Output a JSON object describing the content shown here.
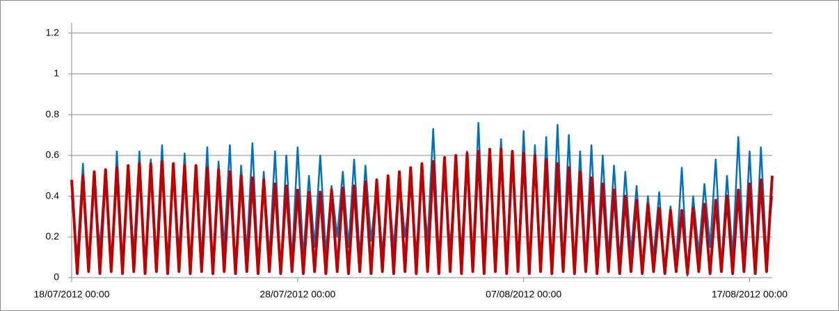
{
  "chart_data": {
    "type": "line",
    "x": [
      "18/07/2012 00:00",
      "18/07/2012 06:00",
      "18/07/2012 12:00",
      "18/07/2012 18:00",
      "19/07/2012 00:00",
      "19/07/2012 06:00",
      "19/07/2012 12:00",
      "19/07/2012 18:00",
      "20/07/2012 00:00",
      "20/07/2012 06:00",
      "20/07/2012 12:00",
      "20/07/2012 18:00",
      "21/07/2012 00:00",
      "21/07/2012 06:00",
      "21/07/2012 12:00",
      "21/07/2012 18:00",
      "22/07/2012 00:00",
      "22/07/2012 06:00",
      "22/07/2012 12:00",
      "22/07/2012 18:00",
      "23/07/2012 00:00",
      "23/07/2012 06:00",
      "23/07/2012 12:00",
      "23/07/2012 18:00",
      "24/07/2012 00:00",
      "24/07/2012 06:00",
      "24/07/2012 12:00",
      "24/07/2012 18:00",
      "25/07/2012 00:00",
      "25/07/2012 06:00",
      "25/07/2012 12:00",
      "25/07/2012 18:00",
      "26/07/2012 00:00",
      "26/07/2012 06:00",
      "26/07/2012 12:00",
      "26/07/2012 18:00",
      "27/07/2012 00:00",
      "27/07/2012 06:00",
      "27/07/2012 12:00",
      "27/07/2012 18:00",
      "28/07/2012 00:00",
      "28/07/2012 06:00",
      "28/07/2012 12:00",
      "28/07/2012 18:00",
      "29/07/2012 00:00",
      "29/07/2012 06:00",
      "29/07/2012 12:00",
      "29/07/2012 18:00",
      "30/07/2012 00:00",
      "30/07/2012 06:00",
      "30/07/2012 12:00",
      "30/07/2012 18:00",
      "31/07/2012 00:00",
      "31/07/2012 06:00",
      "31/07/2012 12:00",
      "31/07/2012 18:00",
      "01/08/2012 00:00",
      "01/08/2012 06:00",
      "01/08/2012 12:00",
      "01/08/2012 18:00",
      "02/08/2012 00:00",
      "02/08/2012 06:00",
      "02/08/2012 12:00",
      "02/08/2012 18:00",
      "03/08/2012 00:00",
      "03/08/2012 06:00",
      "03/08/2012 12:00",
      "03/08/2012 18:00",
      "04/08/2012 00:00",
      "04/08/2012 06:00",
      "04/08/2012 12:00",
      "04/08/2012 18:00",
      "05/08/2012 00:00",
      "05/08/2012 06:00",
      "05/08/2012 12:00",
      "05/08/2012 18:00",
      "06/08/2012 00:00",
      "06/08/2012 06:00",
      "06/08/2012 12:00",
      "06/08/2012 18:00",
      "07/08/2012 00:00",
      "07/08/2012 06:00",
      "07/08/2012 12:00",
      "07/08/2012 18:00",
      "08/08/2012 00:00",
      "08/08/2012 06:00",
      "08/08/2012 12:00",
      "08/08/2012 18:00",
      "09/08/2012 00:00",
      "09/08/2012 06:00",
      "09/08/2012 12:00",
      "09/08/2012 18:00",
      "10/08/2012 00:00",
      "10/08/2012 06:00",
      "10/08/2012 12:00",
      "10/08/2012 18:00",
      "11/08/2012 00:00",
      "11/08/2012 06:00",
      "11/08/2012 12:00",
      "11/08/2012 18:00",
      "12/08/2012 00:00",
      "12/08/2012 06:00",
      "12/08/2012 12:00",
      "12/08/2012 18:00",
      "13/08/2012 00:00",
      "13/08/2012 06:00",
      "13/08/2012 12:00",
      "13/08/2012 18:00",
      "14/08/2012 00:00",
      "14/08/2012 06:00",
      "14/08/2012 12:00",
      "14/08/2012 18:00",
      "15/08/2012 00:00",
      "15/08/2012 06:00",
      "15/08/2012 12:00",
      "15/08/2012 18:00",
      "16/08/2012 00:00",
      "16/08/2012 06:00",
      "16/08/2012 12:00",
      "16/08/2012 18:00",
      "17/08/2012 00:00",
      "17/08/2012 06:00",
      "17/08/2012 12:00",
      "17/08/2012 18:00",
      "18/08/2012 00:00"
    ],
    "series": [
      {
        "color": "#0070c0",
        "values": [
          0.4,
          0.1,
          0.56,
          0.05,
          0.45,
          0.15,
          0.53,
          0.04,
          0.62,
          0.08,
          0.5,
          0.12,
          0.62,
          0.02,
          0.58,
          0.1,
          0.65,
          0.06,
          0.55,
          0.12,
          0.61,
          0.04,
          0.52,
          0.1,
          0.64,
          0.05,
          0.57,
          0.15,
          0.65,
          0.03,
          0.55,
          0.12,
          0.66,
          0.05,
          0.52,
          0.1,
          0.62,
          0.02,
          0.6,
          0.08,
          0.64,
          0.1,
          0.5,
          0.15,
          0.6,
          0.12,
          0.45,
          0.2,
          0.52,
          0.15,
          0.58,
          0.1,
          0.55,
          0.18,
          0.45,
          0.12,
          0.46,
          0.15,
          0.5,
          0.2,
          0.44,
          0.12,
          0.5,
          0.18,
          0.73,
          0.1,
          0.5,
          0.15,
          0.55,
          0.12,
          0.62,
          0.08,
          0.76,
          0.1,
          0.6,
          0.05,
          0.68,
          0.08,
          0.62,
          0.03,
          0.72,
          0.06,
          0.65,
          0.04,
          0.69,
          0.05,
          0.75,
          0.06,
          0.7,
          0.04,
          0.62,
          0.08,
          0.65,
          0.06,
          0.6,
          0.1,
          0.55,
          0.08,
          0.52,
          0.12,
          0.45,
          0.05,
          0.4,
          0.1,
          0.42,
          0.02,
          0.35,
          0.08,
          0.54,
          0.01,
          0.4,
          0.12,
          0.46,
          0.15,
          0.58,
          0.05,
          0.5,
          0.1,
          0.69,
          0.08,
          0.62,
          0.05,
          0.64,
          0.1,
          0.4
        ]
      },
      {
        "color": "#c00000",
        "values": [
          0.48,
          0.02,
          0.5,
          0.03,
          0.52,
          0.02,
          0.53,
          0.03,
          0.54,
          0.02,
          0.55,
          0.03,
          0.56,
          0.02,
          0.56,
          0.03,
          0.57,
          0.02,
          0.56,
          0.03,
          0.55,
          0.02,
          0.55,
          0.03,
          0.54,
          0.02,
          0.53,
          0.03,
          0.52,
          0.02,
          0.5,
          0.03,
          0.49,
          0.02,
          0.48,
          0.03,
          0.46,
          0.02,
          0.45,
          0.03,
          0.43,
          0.02,
          0.42,
          0.03,
          0.42,
          0.02,
          0.43,
          0.03,
          0.44,
          0.02,
          0.45,
          0.03,
          0.47,
          0.02,
          0.48,
          0.03,
          0.5,
          0.02,
          0.52,
          0.03,
          0.54,
          0.02,
          0.56,
          0.03,
          0.57,
          0.02,
          0.59,
          0.03,
          0.6,
          0.02,
          0.61,
          0.03,
          0.62,
          0.02,
          0.63,
          0.03,
          0.63,
          0.02,
          0.62,
          0.03,
          0.61,
          0.02,
          0.6,
          0.03,
          0.58,
          0.02,
          0.56,
          0.03,
          0.54,
          0.02,
          0.52,
          0.03,
          0.49,
          0.02,
          0.46,
          0.03,
          0.43,
          0.02,
          0.4,
          0.03,
          0.38,
          0.02,
          0.36,
          0.03,
          0.34,
          0.02,
          0.33,
          0.03,
          0.33,
          0.02,
          0.34,
          0.03,
          0.36,
          0.02,
          0.38,
          0.03,
          0.4,
          0.02,
          0.43,
          0.03,
          0.46,
          0.02,
          0.48,
          0.03,
          0.5
        ]
      }
    ],
    "xlim": [
      "18/07/2012 00:00",
      "18/08/2012 00:00"
    ],
    "xticks": [
      "18/07/2012 00:00",
      "28/07/2012 00:00",
      "07/08/2012 00:00",
      "17/08/2012 00:00"
    ],
    "ylim": [
      0,
      1.25
    ],
    "yticks": [
      0,
      0.2,
      0.4,
      0.6,
      0.8,
      1,
      1.2
    ],
    "grid": true
  }
}
